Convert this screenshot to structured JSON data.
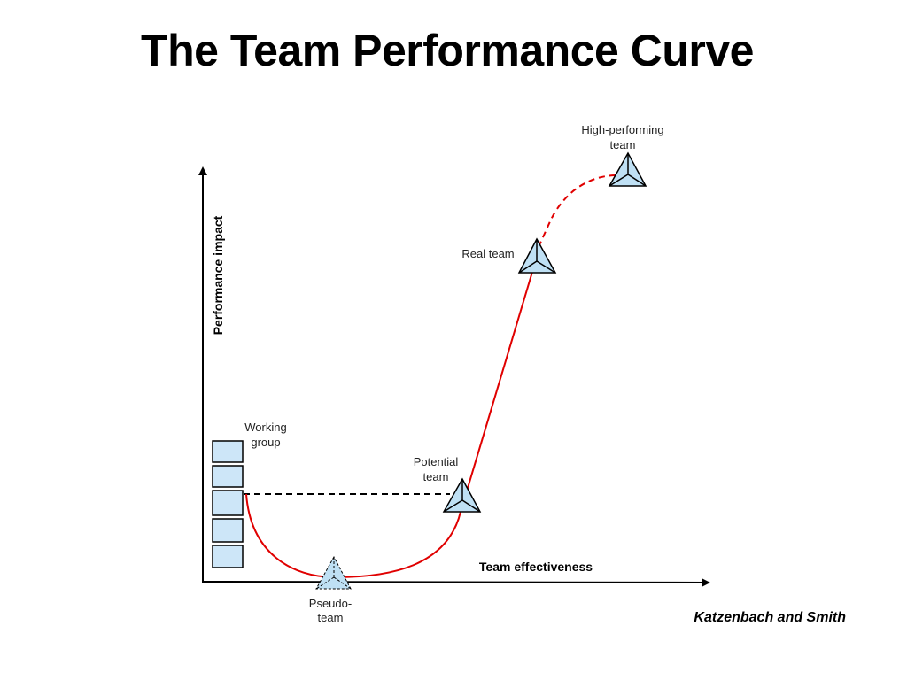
{
  "title": "The Team Performance Curve",
  "axes": {
    "y_label": "Performance impact",
    "x_label": "Team effectiveness"
  },
  "stages": {
    "working_group": {
      "line1": "Working",
      "line2": "group"
    },
    "pseudo_team": {
      "line1": "Pseudo-",
      "line2": "team"
    },
    "potential_team": {
      "line1": "Potential",
      "line2": "team"
    },
    "real_team": {
      "line1": "Real team"
    },
    "high_performing_team": {
      "line1": "High-performing",
      "line2": "team"
    }
  },
  "credit": "Katzenbach and Smith",
  "colors": {
    "curve": "#e00000",
    "triangle_fill": "#bfe0f4",
    "bar_fill": "#cde6f8",
    "axis": "#000000"
  },
  "icons": {
    "stage_marker": "pyramid-icon",
    "working_group_marker": "stacked-bars-icon"
  }
}
